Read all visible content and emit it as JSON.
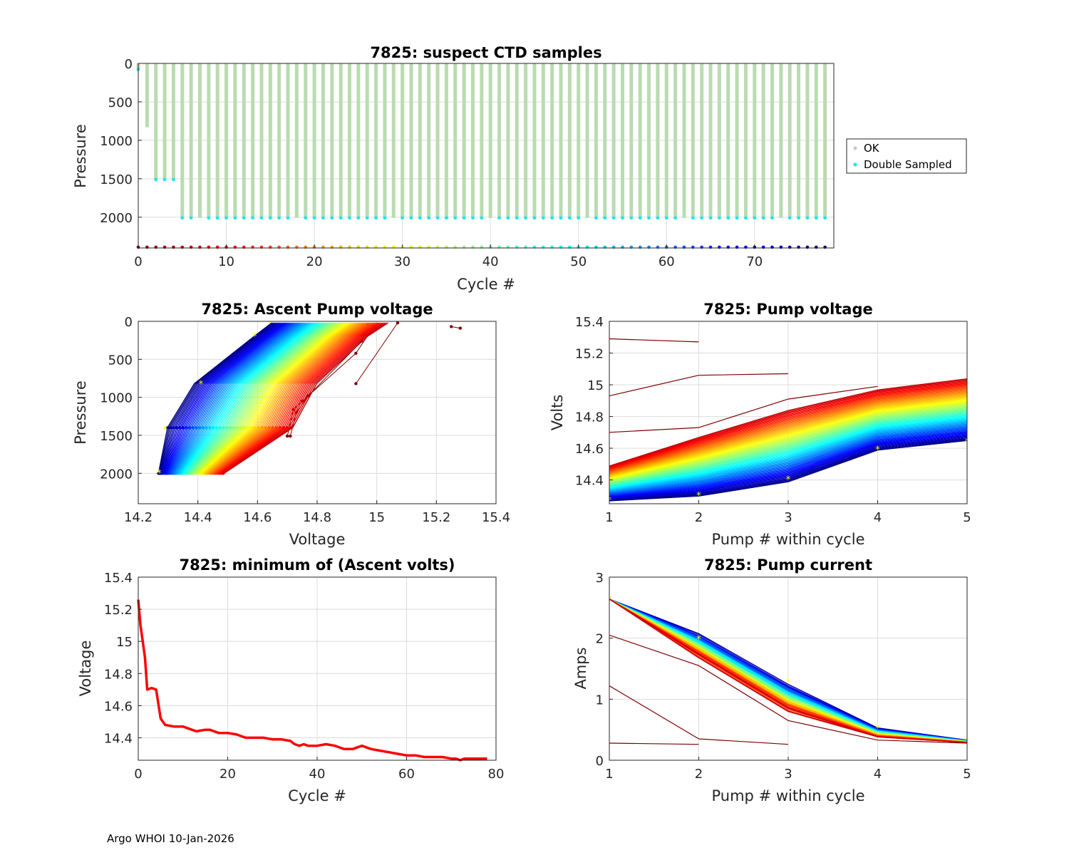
{
  "footer": "Argo WHOI 10-Jan-2026",
  "chart_data": [
    {
      "id": "ctd",
      "type": "scatter",
      "title": "7825: suspect CTD samples",
      "xlabel": "Cycle #",
      "ylabel": "Pressure",
      "xlim": [
        0,
        79
      ],
      "ylim": [
        0,
        2400
      ],
      "y_reversed": true,
      "xticks": [
        "0",
        "10",
        "20",
        "30",
        "40",
        "50",
        "60",
        "70"
      ],
      "yticks": [
        "0",
        "500",
        "1000",
        "1500",
        "2000"
      ],
      "grid": true,
      "legend": {
        "placement": "right",
        "entries": [
          "OK",
          "Double Sampled"
        ]
      },
      "profile_max_pressure": {
        "cycle_0": 80,
        "cycle_1": 830,
        "cycles_2_4": 1510,
        "cycles_5_78": 2010
      },
      "marker_row_pressure": 2390,
      "colors": {
        "ok": "#b9dcb0",
        "double": "#15e6f4",
        "legend_ok": "#c8c8c8"
      }
    },
    {
      "id": "ascent",
      "type": "line",
      "title": "7825: Ascent Pump voltage",
      "xlabel": "Voltage",
      "ylabel": "Pressure",
      "xlim": [
        14.2,
        15.4
      ],
      "ylim": [
        0,
        2400
      ],
      "y_reversed": true,
      "xticks": [
        "14.2",
        "14.4",
        "14.6",
        "14.8",
        "15",
        "15.2",
        "15.4"
      ],
      "yticks": [
        "0",
        "500",
        "1000",
        "1500",
        "2000"
      ],
      "pressures": [
        2000,
        1400,
        820,
        200,
        20
      ],
      "grid": true
    },
    {
      "id": "pumpv",
      "type": "line",
      "title": "7825: Pump voltage",
      "xlabel": "Pump # within cycle",
      "ylabel": "Volts",
      "xlim": [
        1,
        5
      ],
      "ylim": [
        14.25,
        15.4
      ],
      "xticks": [
        "1",
        "2",
        "3",
        "4",
        "5"
      ],
      "yticks": [
        "14.4",
        "14.6",
        "14.8",
        "15",
        "15.2",
        "15.4"
      ],
      "early_series": [
        [
          15.29,
          15.27
        ],
        [
          14.93,
          15.06,
          15.07
        ],
        [
          14.7,
          14.73,
          14.91,
          14.99
        ]
      ],
      "grid": true
    },
    {
      "id": "minv",
      "type": "line",
      "title": "7825: minimum of (Ascent volts)",
      "xlabel": "Cycle #",
      "ylabel": "Voltage",
      "xlim": [
        0,
        80
      ],
      "ylim": [
        14.26,
        15.4
      ],
      "xticks": [
        "0",
        "20",
        "40",
        "60",
        "80"
      ],
      "yticks": [
        "14.4",
        "14.6",
        "14.8",
        "15",
        "15.2",
        "15.4"
      ],
      "x": [
        0,
        0.5,
        1,
        1.5,
        2,
        3,
        4,
        5,
        6,
        8,
        10,
        12,
        13,
        15,
        16,
        18,
        20,
        22,
        24,
        26,
        28,
        30,
        32,
        34,
        35,
        36,
        37,
        38,
        40,
        42,
        44,
        45,
        46,
        48,
        50,
        52,
        54,
        56,
        58,
        60,
        62,
        64,
        66,
        68,
        70,
        71,
        72,
        73,
        74,
        76,
        78
      ],
      "values": [
        15.26,
        15.1,
        15.0,
        14.9,
        14.7,
        14.71,
        14.7,
        14.52,
        14.48,
        14.47,
        14.47,
        14.45,
        14.44,
        14.45,
        14.45,
        14.43,
        14.43,
        14.42,
        14.4,
        14.4,
        14.4,
        14.39,
        14.39,
        14.38,
        14.36,
        14.35,
        14.36,
        14.35,
        14.35,
        14.36,
        14.35,
        14.34,
        14.33,
        14.33,
        14.35,
        14.33,
        14.32,
        14.31,
        14.3,
        14.29,
        14.29,
        14.28,
        14.28,
        14.28,
        14.27,
        14.27,
        14.26,
        14.27,
        14.27,
        14.27,
        14.27
      ],
      "color": "#ff0000",
      "grid": true
    },
    {
      "id": "pumpc",
      "type": "line",
      "title": "7825: Pump current",
      "xlabel": "Pump # within cycle",
      "ylabel": "Amps",
      "xlim": [
        1,
        5
      ],
      "ylim": [
        0,
        3
      ],
      "xticks": [
        "1",
        "2",
        "3",
        "4",
        "5"
      ],
      "yticks": [
        "0",
        "1",
        "2",
        "3"
      ],
      "early_series": [
        [
          0.28,
          0.26
        ],
        [
          1.22,
          0.35,
          0.26
        ],
        [
          2.05,
          1.55,
          0.65,
          0.33,
          0.28
        ]
      ],
      "grid": true
    }
  ]
}
